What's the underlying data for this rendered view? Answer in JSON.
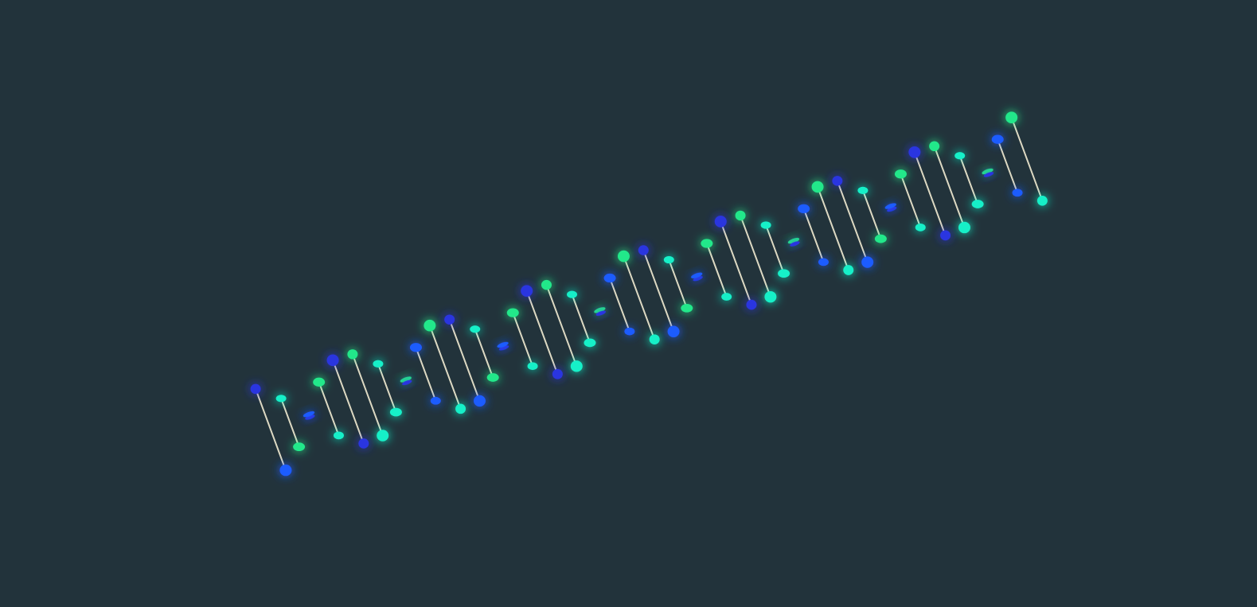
{
  "scene": {
    "background": "#22333b",
    "subject": "dna-double-helix",
    "turns": 4,
    "rungs_per_turn": 10,
    "rung_color": "#f2ecd2",
    "node_palette": {
      "blue": "#1f5bff",
      "indigo": "#2a36e0",
      "cyan": "#17f0c8",
      "green": "#22e88a"
    },
    "node_glow": true
  }
}
